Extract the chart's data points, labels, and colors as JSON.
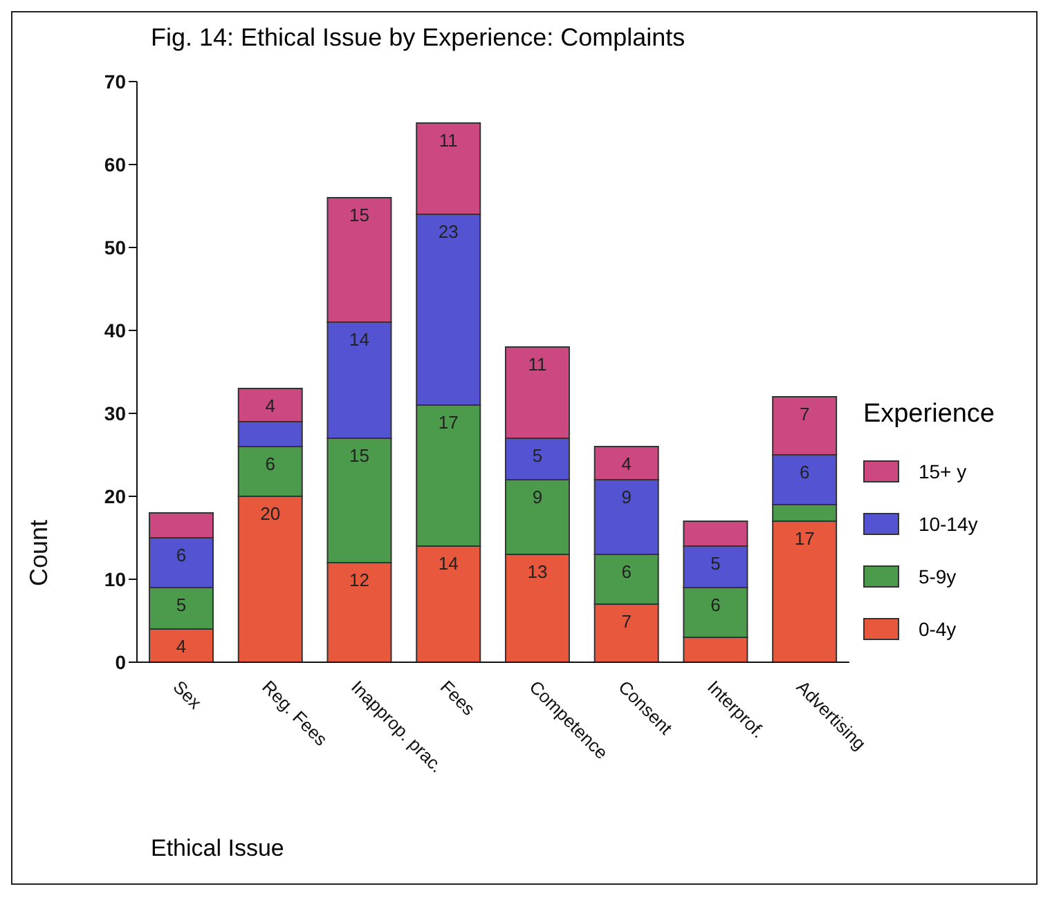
{
  "chart_data": {
    "type": "bar",
    "title": "Fig.  14: Ethical Issue by Experience: Complaints",
    "xlabel": "Ethical Issue",
    "ylabel": "Count",
    "legend_title": "Experience",
    "stacked": true,
    "legend": "right",
    "grid": false,
    "categories": [
      "Sex",
      "Reg. Fees",
      "Inapprop. prac.",
      "Fees",
      "Competence",
      "Consent",
      "Interprof.",
      "Advertising"
    ],
    "ylim": [
      0,
      70
    ],
    "yticks": [
      0,
      10,
      20,
      30,
      40,
      50,
      60,
      70
    ],
    "series": [
      {
        "name": "0-4y",
        "color": "#e8583c",
        "values": [
          4,
          20,
          12,
          14,
          13,
          7,
          3,
          17
        ],
        "value_labels": [
          "4",
          "20",
          "12",
          "14",
          "13",
          "7",
          null,
          "17"
        ]
      },
      {
        "name": "5-9y",
        "color": "#4c9a4c",
        "values": [
          5,
          6,
          15,
          17,
          9,
          6,
          6,
          2
        ],
        "value_labels": [
          "5",
          "6",
          "15",
          "17",
          "9",
          "6",
          "6",
          null
        ]
      },
      {
        "name": "10-14y",
        "color": "#5454d2",
        "values": [
          6,
          3,
          14,
          23,
          5,
          9,
          5,
          6
        ],
        "value_labels": [
          "6",
          null,
          "14",
          "23",
          "5",
          "9",
          "5",
          "6"
        ]
      },
      {
        "name": "15+ y",
        "color": "#cc4880",
        "values": [
          3,
          4,
          15,
          11,
          11,
          4,
          3,
          7
        ],
        "value_labels": [
          null,
          "4",
          "15",
          "11",
          "11",
          "4",
          null,
          "7"
        ]
      }
    ]
  }
}
